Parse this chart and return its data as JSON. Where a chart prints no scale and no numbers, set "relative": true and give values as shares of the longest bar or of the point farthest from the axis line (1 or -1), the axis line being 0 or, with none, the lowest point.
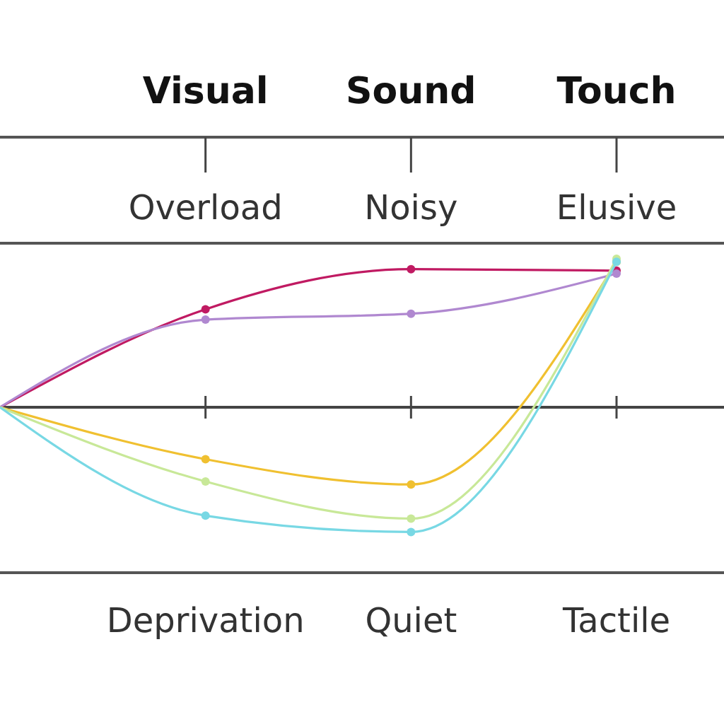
{
  "chart_data": {
    "type": "line",
    "relative": true,
    "categories": [
      null,
      "Visual",
      "Sound",
      "Touch"
    ],
    "marker": "circle",
    "series": [
      {
        "color": "#c01a62",
        "values": [
          0,
          0.66,
          0.93,
          0.92
        ]
      },
      {
        "color": "#b088d0",
        "values": [
          0,
          0.59,
          0.63,
          0.9
        ]
      },
      {
        "color": "#f0c030",
        "values": [
          0,
          -0.35,
          -0.52,
          0.98
        ]
      },
      {
        "color": "#c8e898",
        "values": [
          0,
          -0.5,
          -0.75,
          1
        ]
      },
      {
        "color": "#78d8e4",
        "values": [
          0,
          -0.73,
          -0.84,
          0.98
        ]
      }
    ],
    "annotations": [
      "Overload",
      "Noisy",
      "Elusive",
      "Deprivation",
      "Quiet",
      "Tactile"
    ]
  }
}
